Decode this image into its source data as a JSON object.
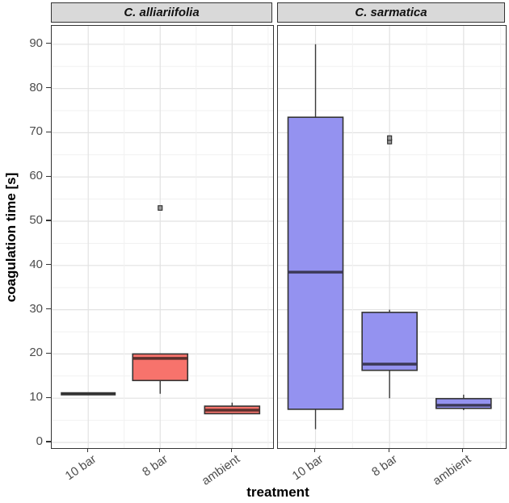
{
  "chart_data": {
    "type": "boxplot",
    "title": "",
    "xlabel": "treatment",
    "ylabel": "coagulation time [s]",
    "ylim": [
      -1.5,
      94.5
    ],
    "y_ticks": [
      0,
      10,
      20,
      30,
      40,
      50,
      60,
      70,
      80,
      90
    ],
    "categories": [
      "10 bar",
      "8 bar",
      "ambient"
    ],
    "grid": "major and minor, light gray on white, theme_bw",
    "legend": "none",
    "facets": [
      {
        "label": "C. alliariifolia",
        "box_fill": "#F7736C",
        "median_color": "#5A302D",
        "boxes": [
          {
            "category": "10 bar",
            "min": 11,
            "q1": 11,
            "median": 11,
            "q3": 11,
            "max": 11,
            "outliers": []
          },
          {
            "category": "8 bar",
            "min": 11,
            "q1": 14,
            "median": 19,
            "q3": 20,
            "max": 20,
            "outliers": [
              53
            ]
          },
          {
            "category": "ambient",
            "min": 6.5,
            "q1": 6.5,
            "median": 7.3,
            "q3": 8.2,
            "max": 9,
            "outliers": []
          }
        ]
      },
      {
        "label": "C. sarmatica",
        "box_fill": "#9492F0",
        "median_color": "#3B3856",
        "boxes": [
          {
            "category": "10 bar",
            "min": 3,
            "q1": 7.5,
            "median": 38.5,
            "q3": 73.5,
            "max": 90,
            "outliers": []
          },
          {
            "category": "8 bar",
            "min": 10,
            "q1": 16.3,
            "median": 17.7,
            "q3": 29.4,
            "max": 30,
            "outliers": [
              68,
              68.8
            ]
          },
          {
            "category": "ambient",
            "min": 7.3,
            "q1": 7.7,
            "median": 8.4,
            "q3": 9.9,
            "max": 10.8,
            "outliers": []
          }
        ]
      }
    ]
  }
}
